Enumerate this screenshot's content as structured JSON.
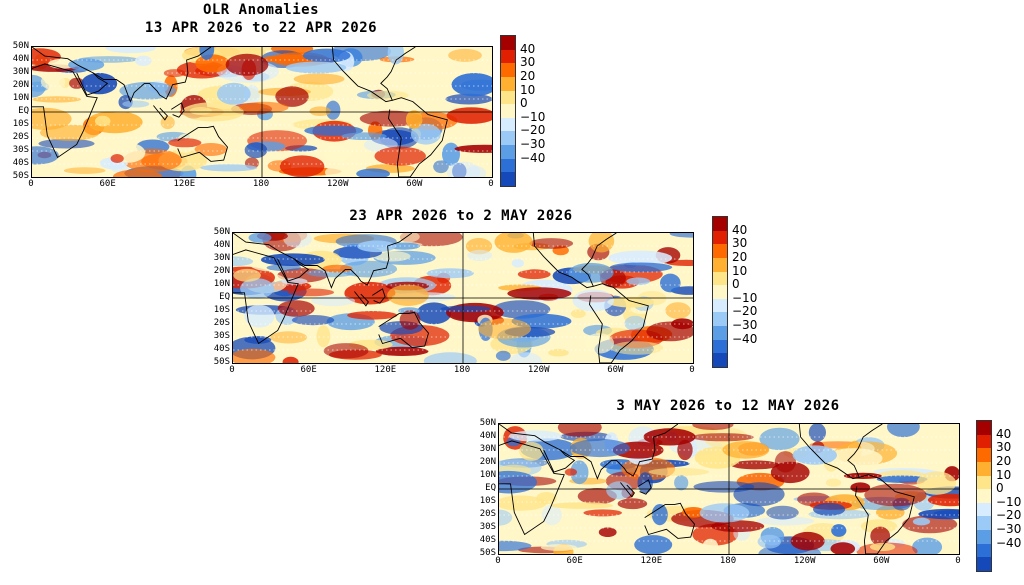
{
  "figure": {
    "main_title": "OLR Anomalies",
    "colorbar": {
      "ticks": [
        "40",
        "30",
        "20",
        "10",
        "0",
        "−10",
        "−20",
        "−30",
        "−40"
      ],
      "colors": [
        "#a50000",
        "#e02000",
        "#ff6a00",
        "#ffb030",
        "#ffe58a",
        "#fff7c8",
        "#d8ecff",
        "#9ccaf6",
        "#5b9ee6",
        "#2c6fd6",
        "#1548b8"
      ]
    },
    "lat_ticks": [
      "50N",
      "40N",
      "30N",
      "20N",
      "10N",
      "EQ",
      "10S",
      "20S",
      "30S",
      "40S",
      "50S"
    ],
    "lon_ticks": [
      "0",
      "60E",
      "120E",
      "180",
      "120W",
      "60W",
      "0"
    ],
    "panels": [
      {
        "period": "13 APR 2026 to 22 APR 2026"
      },
      {
        "period": "23 APR 2026 to 2 MAY 2026"
      },
      {
        "period": "3 MAY 2026 to 12 MAY 2026"
      }
    ]
  }
}
